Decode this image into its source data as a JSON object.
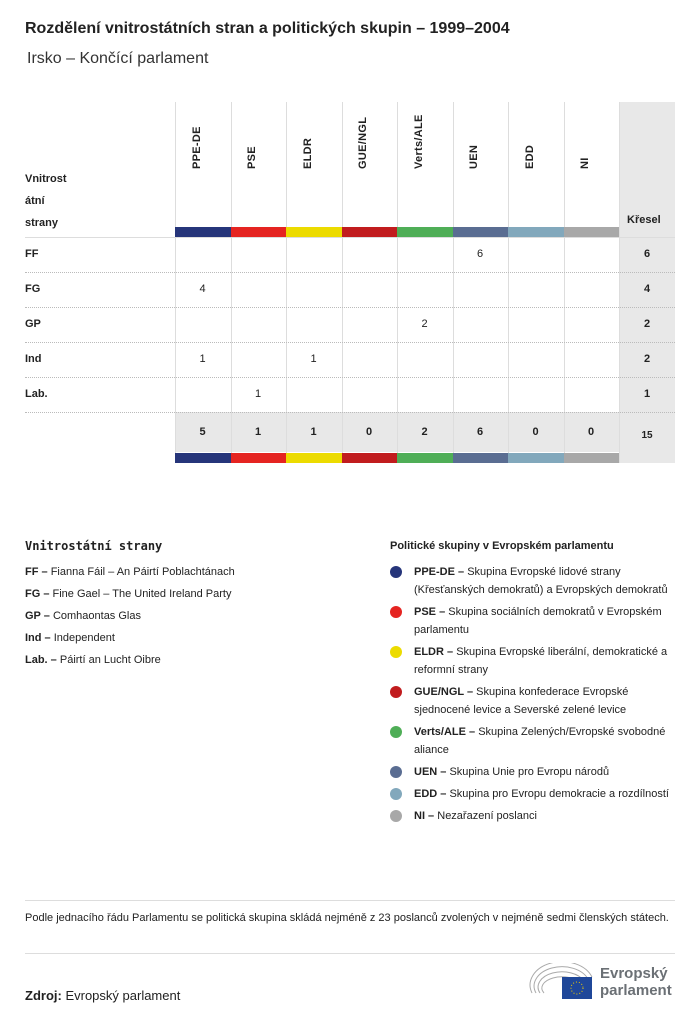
{
  "title": "Rozdělení vnitrostátních stran a politických skupin – 1999–2004",
  "subtitle": "Irsko – Končící parlament",
  "table": {
    "row_header": [
      "Vnitrost",
      "átní",
      "strany"
    ],
    "seats_header": "Křesel",
    "groups": [
      {
        "label": "PPE-DE",
        "color": "#26357a"
      },
      {
        "label": "PSE",
        "color": "#e52421"
      },
      {
        "label": "ELDR",
        "color": "#ecdb00"
      },
      {
        "label": "GUE/NGL",
        "color": "#c11c1e"
      },
      {
        "label": "Verts/ALE",
        "color": "#4fae57"
      },
      {
        "label": "UEN",
        "color": "#5a6d92"
      },
      {
        "label": "EDD",
        "color": "#82a8bc"
      },
      {
        "label": "NI",
        "color": "#a8a8a8"
      }
    ],
    "rows": [
      {
        "party": "FF",
        "values": [
          "",
          "",
          "",
          "",
          "",
          "6",
          "",
          ""
        ],
        "total": "6"
      },
      {
        "party": "FG",
        "values": [
          "4",
          "",
          "",
          "",
          "",
          "",
          "",
          ""
        ],
        "total": "4"
      },
      {
        "party": "GP",
        "values": [
          "",
          "",
          "",
          "",
          "2",
          "",
          "",
          ""
        ],
        "total": "2"
      },
      {
        "party": "Ind",
        "values": [
          "1",
          "",
          "1",
          "",
          "",
          "",
          "",
          ""
        ],
        "total": "2"
      },
      {
        "party": "Lab.",
        "values": [
          "",
          "1",
          "",
          "",
          "",
          "",
          "",
          ""
        ],
        "total": "1"
      }
    ],
    "totals": [
      "5",
      "1",
      "1",
      "0",
      "2",
      "6",
      "0",
      "0"
    ],
    "grand_total": "15"
  },
  "legend_parties": {
    "heading": "Vnitrostátní strany",
    "items": [
      {
        "abbr": "FF –",
        "name": "Fianna Fáil – An Páirtí Poblachtánach"
      },
      {
        "abbr": "FG –",
        "name": "Fine Gael – The United Ireland Party"
      },
      {
        "abbr": "GP –",
        "name": "Comhaontas Glas"
      },
      {
        "abbr": "Ind –",
        "name": "Independent"
      },
      {
        "abbr": "Lab. –",
        "name": "Páirtí an Lucht Oibre"
      }
    ]
  },
  "legend_groups": {
    "heading": "Politické skupiny v Evropském parlamentu",
    "items": [
      {
        "abbr": "PPE-DE –",
        "name": "Skupina Evropské lidové strany (Křesťanských demokratů) a Evropských demokratů",
        "color": "#26357a"
      },
      {
        "abbr": "PSE –",
        "name": "Skupina sociálních demokratů v Evropském parlamentu",
        "color": "#e52421"
      },
      {
        "abbr": "ELDR –",
        "name": "Skupina Evropské liberální, demokratické a reformní strany",
        "color": "#ecdb00"
      },
      {
        "abbr": "GUE/NGL –",
        "name": "Skupina konfederace Evropské sjednocené levice a Severské zelené levice",
        "color": "#c11c1e"
      },
      {
        "abbr": "Verts/ALE –",
        "name": "Skupina Zelených/Evropské svobodné aliance",
        "color": "#4fae57"
      },
      {
        "abbr": "UEN –",
        "name": "Skupina Unie pro Evropu národů",
        "color": "#5a6d92"
      },
      {
        "abbr": "EDD –",
        "name": "Skupina pro Evropu demokracie a rozdílností",
        "color": "#82a8bc"
      },
      {
        "abbr": "NI –",
        "name": "Nezařazení poslanci",
        "color": "#a8a8a8"
      }
    ]
  },
  "note": "Podle jednacího řádu Parlamentu se politická skupina skládá nejméně z 23 poslanců zvolených v nejméně sedmi členských státech.",
  "source": {
    "label": "Zdroj:",
    "value": "Evropský parlament"
  },
  "logo": {
    "line1": "Evropský",
    "line2": "parlament"
  }
}
